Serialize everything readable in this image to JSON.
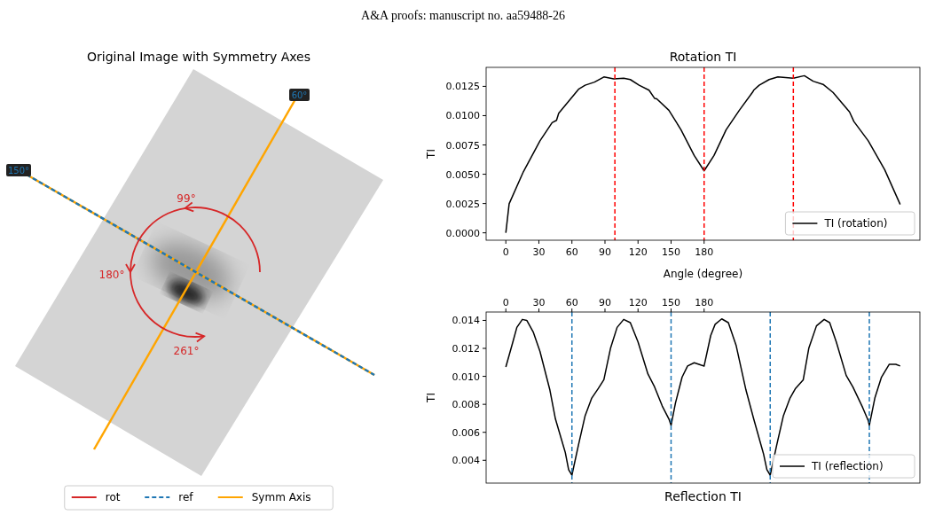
{
  "chart_data": [
    {
      "type": "other",
      "title": "Original Image with Symmetry Axes",
      "legend": "bottom",
      "series": [
        {
          "name": "rot",
          "color": "#d62728",
          "line_style": "solid"
        },
        {
          "name": "ref",
          "color": "#1f77b4",
          "line_style": "dashed"
        },
        {
          "name": "Symm Axis",
          "color": "#ffa500",
          "line_style": "solid"
        }
      ],
      "annotations": [
        "A&A proofs: manuscript no. aa59488-26",
        "99°",
        "180°",
        "261°",
        "60°",
        "150°"
      ]
    },
    {
      "type": "line",
      "title": "Rotation TI",
      "xlabel": "Angle (degree)",
      "ylabel": "TI",
      "legend": "bottom right",
      "xlim": [
        -17.9,
        375.9
      ],
      "xticks": [
        0,
        30,
        60,
        90,
        120,
        150,
        180
      ],
      "ylim": [
        -0.00063,
        0.01412
      ],
      "yticks": [
        {
          "value": 0,
          "label": "0.0000"
        },
        {
          "value": 0.0025,
          "label": "0.0025"
        },
        {
          "value": 0.005,
          "label": "0.0050"
        },
        {
          "value": 0.0075,
          "label": "0.0075"
        },
        {
          "value": 0.01,
          "label": "0.0100"
        },
        {
          "value": 0.0125,
          "label": "0.0125"
        }
      ],
      "ref_lines": [
        {
          "axis": "x",
          "value": 99,
          "color": "#ff0000",
          "line_style": "dashed"
        },
        {
          "axis": "x",
          "value": 180,
          "color": "#ff0000",
          "line_style": "dashed"
        },
        {
          "axis": "x",
          "value": 261,
          "color": "#ff0000",
          "line_style": "dashed"
        }
      ],
      "series": [
        {
          "name": "TI (rotation)",
          "color": "#000000",
          "x": [
            0,
            3,
            16,
            31,
            42,
            46,
            48,
            60,
            66,
            72,
            80.5,
            89,
            98,
            107,
            113,
            121,
            130,
            135,
            137,
            148,
            159,
            171,
            180,
            189,
            200,
            212,
            224,
            225,
            230,
            239,
            247,
            261,
            271,
            279,
            288,
            297,
            312,
            316,
            329,
            344,
            358
          ],
          "values": [
            0,
            0.00248,
            0.00523,
            0.00785,
            0.0094,
            0.0096,
            0.0102,
            0.01156,
            0.01225,
            0.0126,
            0.01286,
            0.0133,
            0.01313,
            0.0132,
            0.01308,
            0.0126,
            0.01217,
            0.01148,
            0.01143,
            0.01046,
            0.0088,
            0.0066,
            0.00529,
            0.0066,
            0.0088,
            0.01046,
            0.012,
            0.01217,
            0.0126,
            0.01308,
            0.0133,
            0.0132,
            0.01341,
            0.01294,
            0.01267,
            0.01198,
            0.01032,
            0.0095,
            0.00785,
            0.00537,
            0.00242
          ]
        }
      ]
    },
    {
      "type": "line",
      "xlabel": "Reflection TI",
      "ylabel": "TI",
      "legend": "bottom right",
      "xlim": [
        -17.9,
        375.9
      ],
      "xticks": [
        0,
        30,
        60,
        90,
        120,
        150,
        180
      ],
      "ylim": [
        0.00237,
        0.0146
      ],
      "yticks": [
        {
          "value": 0.004,
          "label": "0.004"
        },
        {
          "value": 0.006,
          "label": "0.006"
        },
        {
          "value": 0.008,
          "label": "0.008"
        },
        {
          "value": 0.01,
          "label": "0.010"
        },
        {
          "value": 0.012,
          "label": "0.012"
        },
        {
          "value": 0.014,
          "label": "0.014"
        }
      ],
      "ref_lines": [
        {
          "axis": "x",
          "value": 60,
          "color": "#1f77b4",
          "line_style": "dashed"
        },
        {
          "axis": "x",
          "value": 150,
          "color": "#1f77b4",
          "line_style": "dashed"
        },
        {
          "axis": "x",
          "value": 240,
          "color": "#1f77b4",
          "line_style": "dashed"
        },
        {
          "axis": "x",
          "value": 330,
          "color": "#1f77b4",
          "line_style": "dashed"
        }
      ],
      "series": [
        {
          "name": "TI (reflection)",
          "color": "#000000",
          "x": [
            0,
            6,
            10,
            15,
            19,
            25,
            31,
            40,
            45,
            54,
            57,
            60,
            66,
            72,
            78,
            84,
            89,
            95,
            101,
            107,
            113,
            120,
            129,
            135,
            142,
            148,
            150,
            154,
            160,
            165,
            171,
            177,
            180,
            186,
            190,
            196,
            202,
            209,
            218,
            225,
            234,
            237,
            240,
            246,
            252,
            258,
            263,
            270,
            275,
            282,
            289,
            294,
            300,
            309,
            315,
            324,
            329,
            330,
            335,
            341,
            348,
            354,
            358
          ],
          "values": [
            0.01067,
            0.01235,
            0.0135,
            0.01407,
            0.014,
            0.01315,
            0.01178,
            0.00902,
            0.00696,
            0.00455,
            0.00333,
            0.00294,
            0.00512,
            0.00719,
            0.00845,
            0.00914,
            0.00976,
            0.012,
            0.0135,
            0.01407,
            0.01384,
            0.01246,
            0.01017,
            0.00925,
            0.00788,
            0.00696,
            0.0065,
            0.0081,
            0.00994,
            0.01074,
            0.01097,
            0.01081,
            0.01074,
            0.01292,
            0.01372,
            0.01411,
            0.01384,
            0.01223,
            0.00902,
            0.00696,
            0.00444,
            0.00333,
            0.00294,
            0.00512,
            0.00719,
            0.00845,
            0.00914,
            0.00976,
            0.012,
            0.01361,
            0.01407,
            0.01384,
            0.01246,
            0.01006,
            0.00925,
            0.00776,
            0.00684,
            0.0065,
            0.00845,
            0.00994,
            0.01086,
            0.01086,
            0.01074
          ]
        }
      ]
    }
  ]
}
